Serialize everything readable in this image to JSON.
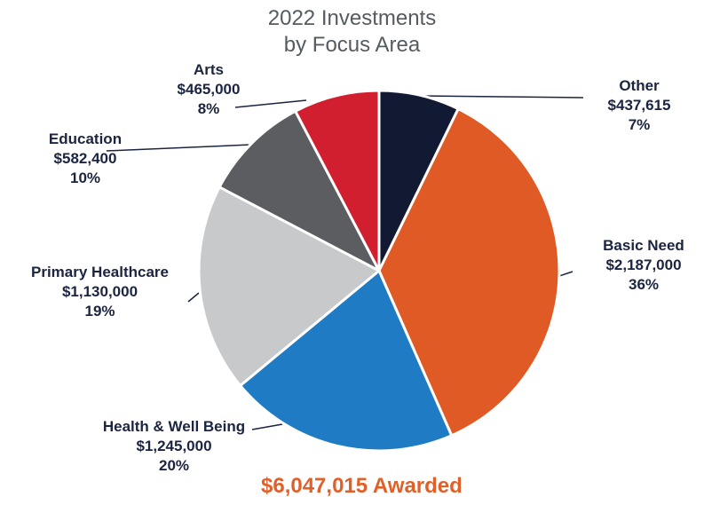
{
  "chart_data": {
    "type": "pie",
    "title_line1": "2022 Investments",
    "title_line2": "by Focus Area",
    "total_label": "$6,047,015 Awarded",
    "slices": [
      {
        "name": "Other",
        "amount": "$437,615",
        "percent_label": "7%",
        "value": 437615,
        "color": "#121a33"
      },
      {
        "name": "Basic Need",
        "amount": "$2,187,000",
        "percent_label": "36%",
        "value": 2187000,
        "color": "#e05a25"
      },
      {
        "name": "Health & Well Being",
        "amount": "$1,245,000",
        "percent_label": "20%",
        "value": 1245000,
        "color": "#1f7bc4"
      },
      {
        "name": "Primary Healthcare",
        "amount": "$1,130,000",
        "percent_label": "19%",
        "value": 1130000,
        "color": "#c8c9cb"
      },
      {
        "name": "Education",
        "amount": "$582,400",
        "percent_label": "10%",
        "value": 582400,
        "color": "#5b5d60"
      },
      {
        "name": "Arts",
        "amount": "$465,000",
        "percent_label": "8%",
        "value": 465000,
        "color": "#d21f30"
      }
    ]
  }
}
